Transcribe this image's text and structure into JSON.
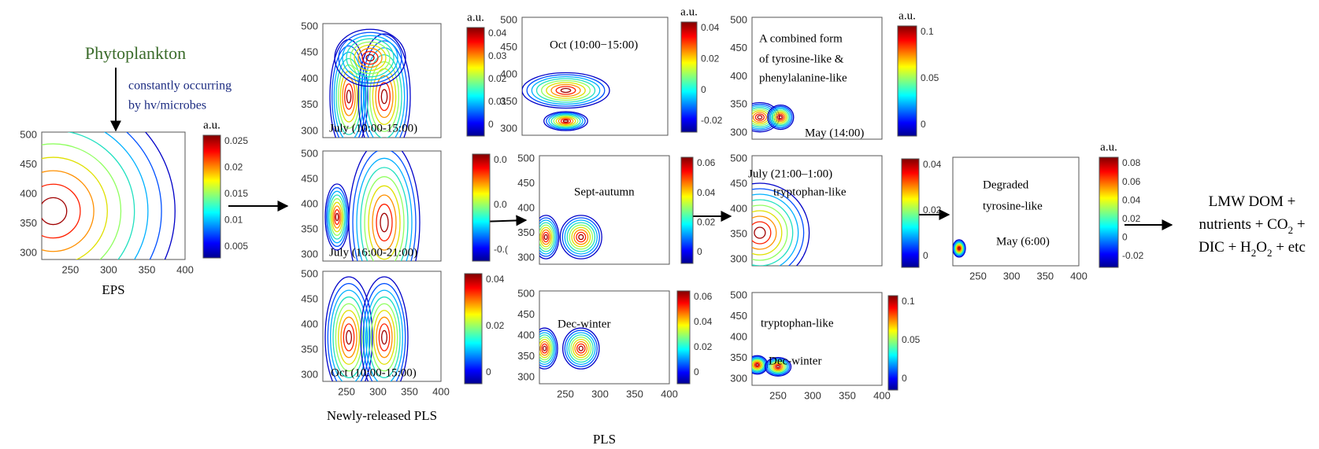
{
  "source": "Phytoplankton",
  "process": [
    "constantly occurring",
    "by hv/microbes"
  ],
  "panels": [
    {
      "caption": "EPS",
      "labels": [],
      "yticks": [
        "500",
        "450",
        "400",
        "350",
        "300"
      ],
      "xticks": [
        "250",
        "300",
        "350",
        "400"
      ],
      "unit": "a.u.",
      "cbticks": [
        "0.025",
        "0.02",
        "0.015",
        "0.01",
        "0.005"
      ]
    },
    {
      "labels": [
        "July (10:00-15:00)"
      ],
      "yticks": [
        "500",
        "450",
        "400",
        "350",
        "300"
      ],
      "xticks": [],
      "unit": "a.u.",
      "cbticks": [
        "0.04",
        "0.03",
        "0.02",
        "0.01",
        "0"
      ]
    },
    {
      "labels": [
        "July (16:00-21:00)"
      ],
      "yticks": [
        "500",
        "450",
        "400",
        "350",
        "300"
      ],
      "xticks": [],
      "cbticks": [
        "0.0",
        "0.0",
        "-0.("
      ]
    },
    {
      "caption": "Newly-released PLS",
      "labels": [
        "Oct (10:00-15:00)"
      ],
      "yticks": [
        "500",
        "450",
        "400",
        "350",
        "300"
      ],
      "xticks": [
        "250",
        "300",
        "350",
        "400"
      ],
      "cbticks": [
        "0.04",
        "0.02",
        "0"
      ]
    },
    {
      "labels": [
        "Oct (10:00−15:00)"
      ],
      "yticks": [
        "500",
        "450",
        "400",
        "350",
        "300"
      ],
      "xticks": [],
      "unit": "a.u.",
      "cbticks": [
        "0.04",
        "0.02",
        "0",
        "-0.02"
      ]
    },
    {
      "labels": [
        "Sept-autumn"
      ],
      "yticks": [
        "500",
        "450",
        "400",
        "350",
        "300"
      ],
      "xticks": [],
      "cbticks": [
        "0.06",
        "0.04",
        "0.02",
        "0"
      ]
    },
    {
      "caption": "PLS",
      "labels": [
        "Dec-winter"
      ],
      "yticks": [
        "500",
        "450",
        "400",
        "350",
        "300"
      ],
      "xticks": [
        "250",
        "300",
        "350",
        "400"
      ],
      "cbticks": [
        "0.06",
        "0.04",
        "0.02",
        "0"
      ]
    },
    {
      "labels": [
        "A combined form",
        "of tyrosine-like &",
        "phenylalanine-like",
        "May (14:00)"
      ],
      "yticks": [
        "500",
        "450",
        "400",
        "350",
        "300"
      ],
      "xticks": [],
      "unit": "a.u.",
      "cbticks": [
        "0.1",
        "0.05",
        "0"
      ]
    },
    {
      "labels": [
        "July (21:00–1:00)",
        "tryptophan-like"
      ],
      "yticks": [
        "500",
        "450",
        "400",
        "350",
        "300"
      ],
      "xticks": [],
      "cbticks": [
        "0.04",
        "0.02",
        "0"
      ]
    },
    {
      "labels": [
        "tryptophan-like",
        "Dec-winter"
      ],
      "yticks": [
        "500",
        "450",
        "400",
        "350",
        "300"
      ],
      "xticks": [
        "250",
        "300",
        "350",
        "400"
      ],
      "cbticks": [
        "0.1",
        "0.05",
        "0"
      ]
    },
    {
      "labels": [
        "Degraded",
        "tyrosine-like",
        "May (6:00)"
      ],
      "yticks": [],
      "xticks": [
        "250",
        "300",
        "350",
        "400"
      ],
      "unit": "a.u.",
      "cbticks": [
        "0.08",
        "0.06",
        "0.04",
        "0.02",
        "0",
        "-0.02"
      ]
    }
  ],
  "result": [
    [
      {
        "t": "LMW DOM +"
      }
    ],
    [
      {
        "t": "nutrients + CO"
      },
      {
        "t": "2",
        "sub": true
      },
      {
        "t": " +"
      }
    ],
    [
      {
        "t": "DIC + H"
      },
      {
        "t": "2",
        "sub": true
      },
      {
        "t": "O"
      },
      {
        "t": "2",
        "sub": true
      },
      {
        "t": " + etc"
      }
    ]
  ]
}
